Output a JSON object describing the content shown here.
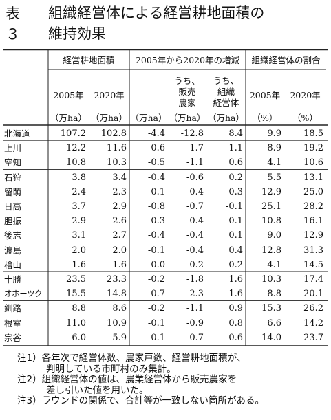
{
  "title": {
    "label": "表３",
    "lines": [
      "組織経営体による経営耕地面積の",
      "維持効果"
    ]
  },
  "table": {
    "group_headers": [
      "経営耕地面積",
      "2005年から2020年の増減",
      "組織経営体の割合"
    ],
    "col_headers": [
      [
        "2005年"
      ],
      [
        "2020年"
      ],
      [
        ""
      ],
      [
        "うち、",
        "販売",
        "農家"
      ],
      [
        "うち、",
        "組織",
        "経営体"
      ],
      [
        "2005年"
      ],
      [
        "2020年"
      ]
    ],
    "units": [
      "（万ha）",
      "（万ha）",
      "（万ha）",
      "（万ha）",
      "（万ha）",
      "（%）",
      "（%）"
    ],
    "rows": [
      [
        "北海道",
        "107.2",
        "102.8",
        "-4.4",
        "-12.8",
        "8.4",
        "9.9",
        "18.5"
      ],
      [
        "上川",
        "12.2",
        "11.6",
        "-0.6",
        "-1.7",
        "1.1",
        "8.9",
        "19.2"
      ],
      [
        "空知",
        "10.8",
        "10.3",
        "-0.5",
        "-1.1",
        "0.6",
        "4.1",
        "10.6"
      ],
      [
        "石狩",
        "3.8",
        "3.4",
        "-0.4",
        "-0.6",
        "0.2",
        "5.5",
        "13.1"
      ],
      [
        "留萌",
        "2.4",
        "2.3",
        "-0.1",
        "-0.4",
        "0.3",
        "12.9",
        "25.0"
      ],
      [
        "日高",
        "3.7",
        "2.9",
        "-0.8",
        "-0.7",
        "-0.1",
        "25.1",
        "28.2"
      ],
      [
        "胆振",
        "2.9",
        "2.6",
        "-0.3",
        "-0.4",
        "0.1",
        "10.8",
        "16.1"
      ],
      [
        "後志",
        "3.1",
        "2.7",
        "-0.4",
        "-0.4",
        "0.1",
        "9.0",
        "12.9"
      ],
      [
        "渡島",
        "2.0",
        "2.0",
        "-0.1",
        "-0.4",
        "0.4",
        "12.8",
        "31.3"
      ],
      [
        "檜山",
        "1.6",
        "1.6",
        "0.0",
        "-0.2",
        "0.2",
        "4.1",
        "14.5"
      ],
      [
        "十勝",
        "23.5",
        "23.3",
        "-0.2",
        "-1.8",
        "1.6",
        "10.3",
        "17.4"
      ],
      [
        "オホーツク",
        "15.5",
        "14.8",
        "-0.7",
        "-2.3",
        "1.6",
        "8.8",
        "20.1"
      ],
      [
        "釧路",
        "8.8",
        "8.6",
        "-0.2",
        "-1.1",
        "0.9",
        "15.3",
        "26.2"
      ],
      [
        "根室",
        "11.0",
        "10.9",
        "-0.1",
        "-0.9",
        "0.8",
        "6.6",
        "14.2"
      ],
      [
        "宗谷",
        "6.0",
        "5.9",
        "-0.1",
        "-0.7",
        "0.6",
        "14.0",
        "23.7"
      ]
    ]
  },
  "notes": [
    {
      "text": "注1）各年次で経営体数、農家戸数、経営耕地面積が、",
      "indent": false
    },
    {
      "text": "判明している市町村のみ集計。",
      "indent": true
    },
    {
      "text": "注2）組織経営体の値は、農業経営体から販売農家を",
      "indent": false
    },
    {
      "text": "差し引いた値を用いた。",
      "indent": true
    },
    {
      "text": "注3）ラウンドの関係で、合計等が一致しない箇所がある。",
      "indent": false
    }
  ]
}
